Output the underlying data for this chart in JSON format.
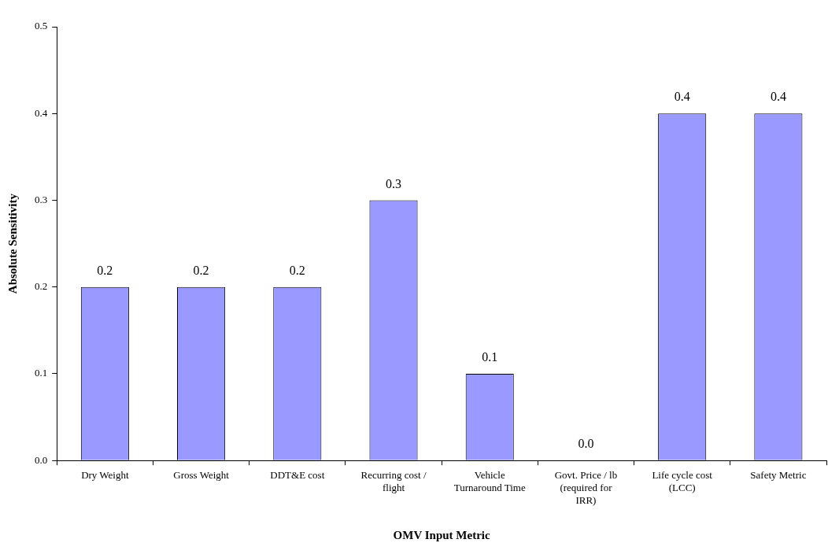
{
  "chart_data": {
    "type": "bar",
    "xlabel": "OMV Input Metric",
    "ylabel": "Absolute Sensitivity",
    "categories": [
      "Dry Weight",
      "Gross Weight",
      "DDT&E cost",
      "Recurring cost / flight",
      "Vehicle Turnaround Time",
      "Govt. Price / lb (required for IRR)",
      "Life cycle cost (LCC)",
      "Safety Metric"
    ],
    "values": [
      0.2,
      0.2,
      0.2,
      0.3,
      0.1,
      0,
      0.4,
      0.4
    ],
    "value_labels": [
      "0.2",
      "0.2",
      "0.2",
      "0.3",
      "0.1",
      "0.0",
      "0.4",
      "0.4"
    ],
    "color": "#9999ff",
    "ylim": [
      0,
      0.5
    ],
    "yticks": [
      {
        "value": 0,
        "label": "0.0"
      },
      {
        "value": 0.1,
        "label": "0.1"
      },
      {
        "value": 0.2,
        "label": "0.2"
      },
      {
        "value": 0.3,
        "label": "0.3"
      },
      {
        "value": 0.4,
        "label": "0.4"
      },
      {
        "value": 0.5,
        "label": "0.5"
      }
    ],
    "grid": false,
    "legend": false
  }
}
